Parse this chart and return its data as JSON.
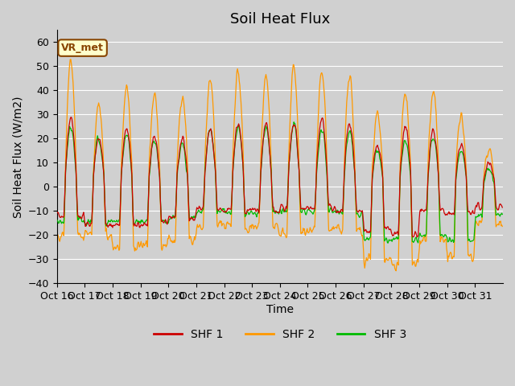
{
  "title": "Soil Heat Flux",
  "ylabel": "Soil Heat Flux (W/m2)",
  "xlabel": "Time",
  "ylim": [
    -40,
    65
  ],
  "yticks": [
    -40,
    -30,
    -20,
    -10,
    0,
    10,
    20,
    30,
    40,
    50,
    60
  ],
  "xtick_labels": [
    "Oct 16",
    "Oct 17",
    "Oct 18",
    "Oct 19",
    "Oct 20",
    "Oct 21",
    "Oct 22",
    "Oct 23",
    "Oct 24",
    "Oct 25",
    "Oct 26",
    "Oct 27",
    "Oct 28",
    "Oct 29",
    "Oct 30",
    "Oct 31"
  ],
  "color_shf1": "#cc0000",
  "color_shf2": "#ff9900",
  "color_shf3": "#00bb00",
  "bg_color": "#d0d0d0",
  "annotation_text": "VR_met",
  "annotation_bg": "#ffffcc",
  "annotation_border": "#884400",
  "legend_labels": [
    "SHF 1",
    "SHF 2",
    "SHF 3"
  ],
  "n_days": 16,
  "points_per_day": 48,
  "title_fontsize": 13,
  "label_fontsize": 10,
  "tick_fontsize": 9,
  "shf2_day_amps": [
    52,
    34,
    41,
    40,
    38,
    45,
    48,
    46,
    50,
    49,
    46,
    30,
    39,
    39,
    30,
    15
  ],
  "shf1_day_amps": [
    29,
    20,
    24,
    21,
    20,
    24,
    27,
    26,
    26,
    28,
    26,
    17,
    25,
    24,
    18,
    10
  ],
  "shf3_day_amps": [
    25,
    20,
    22,
    19,
    18,
    24,
    25,
    25,
    26,
    24,
    23,
    15,
    20,
    20,
    15,
    8
  ],
  "shf2_night_vals": [
    -20,
    -19,
    -25,
    -24,
    -22,
    -16,
    -17,
    -17,
    -19,
    -18,
    -18,
    -30,
    -32,
    -22,
    -29,
    -15
  ],
  "shf1_night_vals": [
    -12,
    -16,
    -16,
    -15,
    -13,
    -9,
    -10,
    -10,
    -9,
    -9,
    -10,
    -18,
    -20,
    -10,
    -11,
    -8
  ],
  "shf3_night_vals": [
    -14,
    -15,
    -15,
    -14,
    -13,
    -10,
    -11,
    -11,
    -10,
    -10,
    -11,
    -22,
    -22,
    -20,
    -22,
    -12
  ]
}
